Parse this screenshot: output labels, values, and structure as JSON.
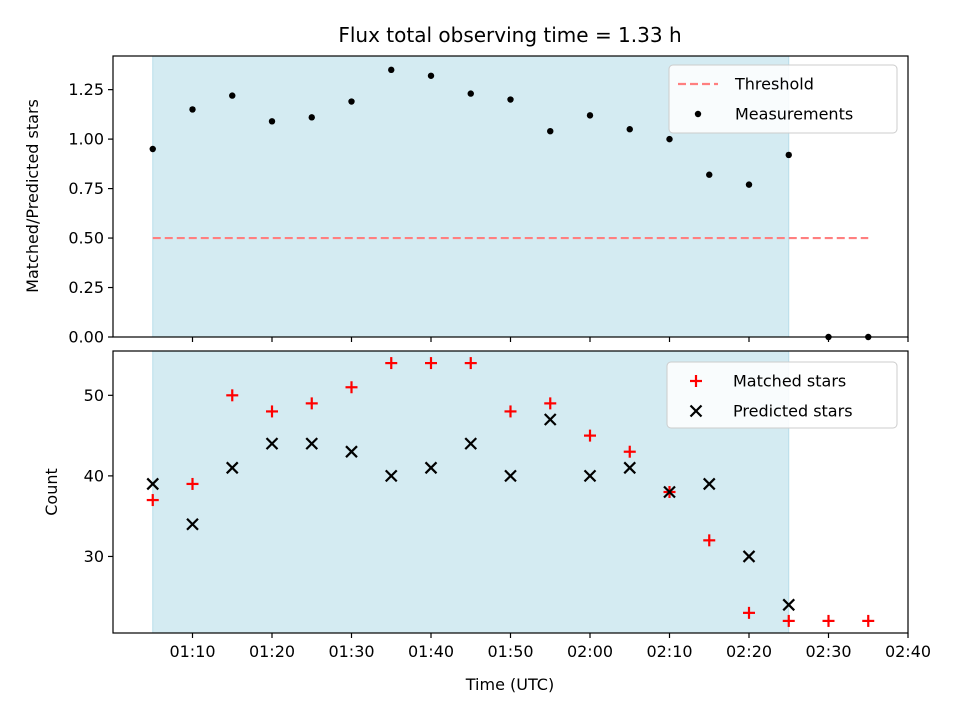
{
  "title": "Flux total observing time = 1.33 h",
  "chart_data": [
    {
      "type": "scatter",
      "panel": "top",
      "ylabel": "Matched/Predicted stars",
      "ylim": [
        0,
        1.42
      ],
      "yticks": [
        0.0,
        0.25,
        0.5,
        0.75,
        1.0,
        1.25
      ],
      "ytick_labels": [
        "0.00",
        "0.25",
        "0.50",
        "0.75",
        "1.00",
        "1.25"
      ],
      "threshold": {
        "name": "Threshold",
        "value": 0.5,
        "x_start": "01:05",
        "x_end": "02:35",
        "color": "#ff7f7f"
      },
      "series": [
        {
          "name": "Measurements",
          "color": "#000000",
          "marker": "dot",
          "points": [
            {
              "x": "01:05",
              "y": 0.95
            },
            {
              "x": "01:10",
              "y": 1.15
            },
            {
              "x": "01:15",
              "y": 1.22
            },
            {
              "x": "01:20",
              "y": 1.09
            },
            {
              "x": "01:25",
              "y": 1.11
            },
            {
              "x": "01:30",
              "y": 1.19
            },
            {
              "x": "01:35",
              "y": 1.35
            },
            {
              "x": "01:40",
              "y": 1.32
            },
            {
              "x": "01:45",
              "y": 1.23
            },
            {
              "x": "01:50",
              "y": 1.2
            },
            {
              "x": "01:55",
              "y": 1.04
            },
            {
              "x": "02:00",
              "y": 1.12
            },
            {
              "x": "02:05",
              "y": 1.05
            },
            {
              "x": "02:10",
              "y": 1.0
            },
            {
              "x": "02:15",
              "y": 0.82
            },
            {
              "x": "02:20",
              "y": 0.77
            },
            {
              "x": "02:25",
              "y": 0.92
            },
            {
              "x": "02:30",
              "y": 0.0
            },
            {
              "x": "02:35",
              "y": 0.0
            }
          ]
        }
      ],
      "shaded_span": {
        "x_start": "01:05",
        "x_end": "02:25",
        "color": "#add8e6"
      },
      "legend": "top-right"
    },
    {
      "type": "scatter",
      "panel": "bottom",
      "xlabel": "Time (UTC)",
      "ylabel": "Count",
      "ylim": [
        20.5,
        55.5
      ],
      "yticks": [
        30,
        40,
        50
      ],
      "ytick_labels": [
        "30",
        "40",
        "50"
      ],
      "xlim": [
        "01:00",
        "02:40"
      ],
      "xticks": [
        "01:10",
        "01:20",
        "01:30",
        "01:40",
        "01:50",
        "02:00",
        "02:10",
        "02:20",
        "02:30",
        "02:40"
      ],
      "series": [
        {
          "name": "Matched stars",
          "color": "#ff0000",
          "marker": "plus",
          "points": [
            {
              "x": "01:05",
              "y": 37
            },
            {
              "x": "01:10",
              "y": 39
            },
            {
              "x": "01:15",
              "y": 50
            },
            {
              "x": "01:20",
              "y": 48
            },
            {
              "x": "01:25",
              "y": 49
            },
            {
              "x": "01:30",
              "y": 51
            },
            {
              "x": "01:35",
              "y": 54
            },
            {
              "x": "01:40",
              "y": 54
            },
            {
              "x": "01:45",
              "y": 54
            },
            {
              "x": "01:50",
              "y": 48
            },
            {
              "x": "01:55",
              "y": 49
            },
            {
              "x": "02:00",
              "y": 45
            },
            {
              "x": "02:05",
              "y": 43
            },
            {
              "x": "02:10",
              "y": 38
            },
            {
              "x": "02:15",
              "y": 32
            },
            {
              "x": "02:20",
              "y": 23
            },
            {
              "x": "02:25",
              "y": 22
            },
            {
              "x": "02:30",
              "y": 22
            },
            {
              "x": "02:35",
              "y": 22
            }
          ]
        },
        {
          "name": "Predicted stars",
          "color": "#000000",
          "marker": "x",
          "points": [
            {
              "x": "01:05",
              "y": 39
            },
            {
              "x": "01:10",
              "y": 34
            },
            {
              "x": "01:15",
              "y": 41
            },
            {
              "x": "01:20",
              "y": 44
            },
            {
              "x": "01:25",
              "y": 44
            },
            {
              "x": "01:30",
              "y": 43
            },
            {
              "x": "01:35",
              "y": 40
            },
            {
              "x": "01:40",
              "y": 41
            },
            {
              "x": "01:45",
              "y": 44
            },
            {
              "x": "01:50",
              "y": 40
            },
            {
              "x": "01:55",
              "y": 47
            },
            {
              "x": "02:00",
              "y": 40
            },
            {
              "x": "02:05",
              "y": 41
            },
            {
              "x": "02:10",
              "y": 38
            },
            {
              "x": "02:15",
              "y": 39
            },
            {
              "x": "02:20",
              "y": 30
            },
            {
              "x": "02:25",
              "y": 24
            }
          ]
        }
      ],
      "shaded_span": {
        "x_start": "01:05",
        "x_end": "02:25",
        "color": "#add8e6"
      },
      "legend": "top-right"
    }
  ]
}
